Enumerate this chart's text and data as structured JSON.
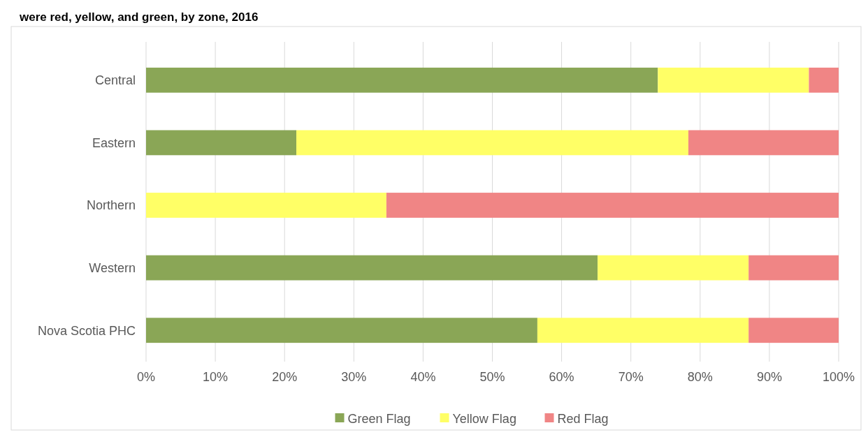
{
  "chart_data": {
    "type": "bar",
    "title": "were red, yellow, and green, by zone, 2016",
    "orientation": "horizontal",
    "stacked": true,
    "categories": [
      "Central",
      "Eastern",
      "Northern",
      "Western",
      "Nova Scotia PHC"
    ],
    "series": [
      {
        "name": "Green Flag",
        "color": "#8aa656",
        "values": [
          73.9,
          21.7,
          0,
          65.2,
          56.5
        ]
      },
      {
        "name": "Yellow Flag",
        "color": "#ffff66",
        "values": [
          21.8,
          56.6,
          34.7,
          21.8,
          30.5
        ]
      },
      {
        "name": "Red Flag",
        "color": "#f08585",
        "values": [
          4.3,
          21.7,
          65.3,
          13.0,
          13.0
        ]
      }
    ],
    "xlim": [
      0,
      100
    ],
    "xticks": [
      {
        "value": 0,
        "label": "0%"
      },
      {
        "value": 10,
        "label": "10%"
      },
      {
        "value": 20,
        "label": "20%"
      },
      {
        "value": 30,
        "label": "30%"
      },
      {
        "value": 40,
        "label": "40%"
      },
      {
        "value": 50,
        "label": "50%"
      },
      {
        "value": 60,
        "label": "60%"
      },
      {
        "value": 70,
        "label": "70%"
      },
      {
        "value": 80,
        "label": "80%"
      },
      {
        "value": 90,
        "label": "90%"
      },
      {
        "value": 100,
        "label": "100%"
      }
    ],
    "grid": "x",
    "legend": "bottom"
  }
}
